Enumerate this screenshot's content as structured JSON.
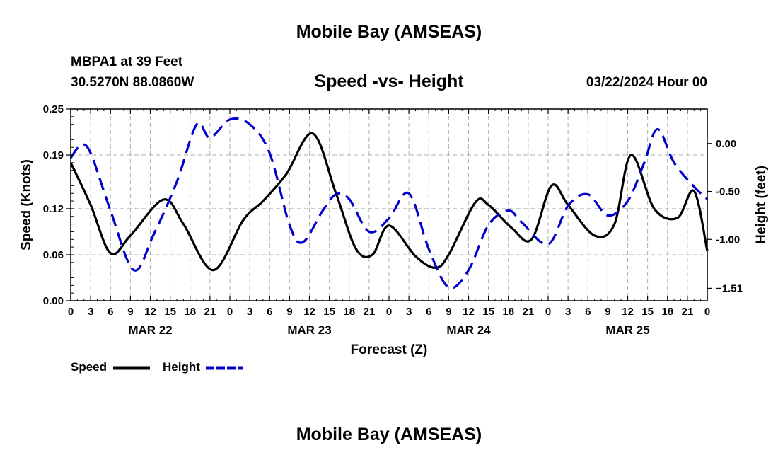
{
  "header": {
    "title": "Mobile Bay (AMSEAS)",
    "station": "MBPA1 at 39 Feet",
    "coords": "30.5270N  88.0860W",
    "subtitle": "Speed -vs- Height",
    "datetime": "03/22/2024 Hour 00"
  },
  "footer": {
    "title": "Mobile Bay (AMSEAS)"
  },
  "chart_data": {
    "type": "line",
    "xlabel": "Forecast (Z)",
    "ylabel_left": "Speed (Knots)",
    "ylabel_right": "Height (feet)",
    "x_range_hours": [
      0,
      96
    ],
    "x_ticks": [
      {
        "hour": 0,
        "label": "0"
      },
      {
        "hour": 3,
        "label": "3"
      },
      {
        "hour": 6,
        "label": "6"
      },
      {
        "hour": 9,
        "label": "9"
      },
      {
        "hour": 12,
        "label": "12"
      },
      {
        "hour": 15,
        "label": "15"
      },
      {
        "hour": 18,
        "label": "18"
      },
      {
        "hour": 21,
        "label": "21"
      },
      {
        "hour": 24,
        "label": "0"
      },
      {
        "hour": 27,
        "label": "3"
      },
      {
        "hour": 30,
        "label": "6"
      },
      {
        "hour": 33,
        "label": "9"
      },
      {
        "hour": 36,
        "label": "12"
      },
      {
        "hour": 39,
        "label": "15"
      },
      {
        "hour": 42,
        "label": "18"
      },
      {
        "hour": 45,
        "label": "21"
      },
      {
        "hour": 48,
        "label": "0"
      },
      {
        "hour": 51,
        "label": "3"
      },
      {
        "hour": 54,
        "label": "6"
      },
      {
        "hour": 57,
        "label": "9"
      },
      {
        "hour": 60,
        "label": "12"
      },
      {
        "hour": 63,
        "label": "15"
      },
      {
        "hour": 66,
        "label": "18"
      },
      {
        "hour": 69,
        "label": "21"
      },
      {
        "hour": 72,
        "label": "0"
      },
      {
        "hour": 75,
        "label": "3"
      },
      {
        "hour": 78,
        "label": "6"
      },
      {
        "hour": 81,
        "label": "9"
      },
      {
        "hour": 84,
        "label": "12"
      },
      {
        "hour": 87,
        "label": "15"
      },
      {
        "hour": 90,
        "label": "18"
      },
      {
        "hour": 93,
        "label": "21"
      },
      {
        "hour": 96,
        "label": "0"
      }
    ],
    "day_labels": [
      {
        "hour": 12,
        "label": "MAR 22"
      },
      {
        "hour": 36,
        "label": "MAR 23"
      },
      {
        "hour": 60,
        "label": "MAR 24"
      },
      {
        "hour": 84,
        "label": "MAR 25"
      }
    ],
    "y_left": {
      "range": [
        0,
        0.25
      ],
      "ticks": [
        0.0,
        0.06,
        0.12,
        0.19,
        0.25
      ],
      "tick_labels": [
        "0.00",
        "0.06",
        "0.12",
        "0.19",
        "0.25"
      ]
    },
    "y_right": {
      "range": [
        -1.64,
        0.36
      ],
      "ticks": [
        0.0,
        -0.5,
        -1.0,
        -1.51
      ],
      "tick_labels": [
        "0.00",
        "-0.50",
        "-1.00",
        "−1.51"
      ]
    },
    "series": [
      {
        "name": "Speed",
        "axis": "left",
        "color": "#000000",
        "style": "solid",
        "points": [
          [
            0,
            0.18
          ],
          [
            3,
            0.125
          ],
          [
            6,
            0.062
          ],
          [
            9,
            0.085
          ],
          [
            14,
            0.132
          ],
          [
            17,
            0.1
          ],
          [
            21.5,
            0.04
          ],
          [
            26,
            0.105
          ],
          [
            29,
            0.13
          ],
          [
            32.5,
            0.165
          ],
          [
            36.5,
            0.218
          ],
          [
            40,
            0.14
          ],
          [
            43,
            0.068
          ],
          [
            45.5,
            0.06
          ],
          [
            48,
            0.098
          ],
          [
            52,
            0.058
          ],
          [
            55,
            0.043
          ],
          [
            57,
            0.06
          ],
          [
            61,
            0.128
          ],
          [
            63,
            0.125
          ],
          [
            66.5,
            0.095
          ],
          [
            69.5,
            0.08
          ],
          [
            72.5,
            0.15
          ],
          [
            75,
            0.125
          ],
          [
            79,
            0.085
          ],
          [
            82,
            0.1
          ],
          [
            84.5,
            0.19
          ],
          [
            88,
            0.12
          ],
          [
            91.5,
            0.108
          ],
          [
            94,
            0.143
          ],
          [
            96,
            0.065
          ]
        ]
      },
      {
        "name": "Height",
        "axis": "right",
        "color": "#0000cc",
        "style": "dashed",
        "points": [
          [
            0,
            -0.15
          ],
          [
            1.5,
            -0.02
          ],
          [
            3,
            -0.1
          ],
          [
            6,
            -0.7
          ],
          [
            9.5,
            -1.32
          ],
          [
            12.5,
            -0.95
          ],
          [
            16,
            -0.4
          ],
          [
            19,
            0.2
          ],
          [
            21,
            0.06
          ],
          [
            24,
            0.25
          ],
          [
            27,
            0.2
          ],
          [
            30,
            -0.1
          ],
          [
            33,
            -0.85
          ],
          [
            35,
            -1.03
          ],
          [
            38,
            -0.7
          ],
          [
            40,
            -0.53
          ],
          [
            42,
            -0.58
          ],
          [
            45,
            -0.92
          ],
          [
            48,
            -0.78
          ],
          [
            51,
            -0.52
          ],
          [
            54,
            -1.1
          ],
          [
            57,
            -1.5
          ],
          [
            60,
            -1.32
          ],
          [
            63,
            -0.85
          ],
          [
            66,
            -0.7
          ],
          [
            68,
            -0.82
          ],
          [
            72,
            -1.05
          ],
          [
            75,
            -0.65
          ],
          [
            78,
            -0.53
          ],
          [
            81,
            -0.75
          ],
          [
            84,
            -0.6
          ],
          [
            86.5,
            -0.2
          ],
          [
            88.5,
            0.15
          ],
          [
            91,
            -0.2
          ],
          [
            94,
            -0.45
          ],
          [
            96,
            -0.58
          ]
        ]
      }
    ],
    "legend": [
      {
        "label": "Speed",
        "color": "#000000",
        "style": "solid"
      },
      {
        "label": "Height",
        "color": "#0000cc",
        "style": "dashed"
      }
    ],
    "grid": true,
    "legend_position": "bottom-left"
  }
}
